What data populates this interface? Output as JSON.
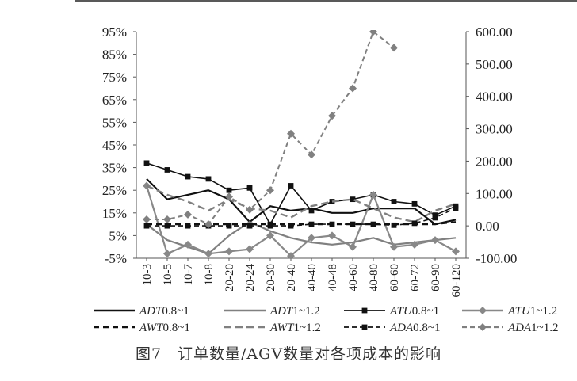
{
  "caption": "图7　订单数量/AGV数量对各项成本的影响",
  "chart_data": {
    "type": "line",
    "title": "",
    "categories": [
      "10-3",
      "10-5",
      "10-7",
      "10-8",
      "20-20",
      "20-24",
      "20-30",
      "20-40",
      "40-40",
      "40-48",
      "40-60",
      "40-80",
      "60-60",
      "60-72",
      "60-90",
      "60-120"
    ],
    "left_axis": {
      "ylim": [
        -5,
        95
      ],
      "ticks": [
        "-5%",
        "5%",
        "15%",
        "25%",
        "35%",
        "45%",
        "55%",
        "65%",
        "75%",
        "85%",
        "95%"
      ],
      "tick_values": [
        -5,
        5,
        15,
        25,
        35,
        45,
        55,
        65,
        75,
        85,
        95
      ]
    },
    "right_axis": {
      "ylim": [
        -100,
        600
      ],
      "ticks": [
        "-100.00",
        "0.00",
        "100.00",
        "200.00",
        "300.00",
        "400.00",
        "500.00",
        "600.00"
      ],
      "tick_values": [
        -100,
        0,
        100,
        200,
        300,
        400,
        500,
        600
      ]
    },
    "grid": false,
    "legend_position": "bottom",
    "series": [
      {
        "name": "ADT0.8~1",
        "axis": "left",
        "style": "solid-black",
        "values": [
          30,
          21,
          23,
          25,
          21,
          11,
          18,
          16,
          17,
          15,
          15,
          17,
          17,
          17,
          10,
          12
        ]
      },
      {
        "name": "ADT1~1.2",
        "axis": "left",
        "style": "solid-gray",
        "values": [
          10,
          3,
          0,
          -3,
          5,
          11,
          7,
          4,
          2,
          1,
          2,
          4,
          1,
          2,
          3,
          4
        ]
      },
      {
        "name": "ATU0.8~1",
        "axis": "left",
        "style": "solid-black-square",
        "values": [
          37,
          34,
          31,
          30,
          25,
          26,
          10,
          27,
          16,
          20,
          21,
          23,
          20,
          19,
          14,
          18
        ]
      },
      {
        "name": "ATU1~1.2",
        "axis": "left",
        "style": "solid-gray-diamond",
        "values": [
          27,
          -3,
          1,
          -3,
          -2,
          -1,
          5,
          -4,
          4,
          5,
          0,
          23,
          0,
          1,
          3,
          -2
        ]
      },
      {
        "name": "AWT0.8~1",
        "axis": "left",
        "style": "dashed-black",
        "values": [
          10,
          10,
          10,
          10,
          10,
          10,
          10,
          10,
          10,
          10,
          10,
          10,
          10,
          10,
          10,
          11
        ]
      },
      {
        "name": "AWT1~1.2",
        "axis": "left",
        "style": "dashed-gray",
        "values": [
          27,
          23,
          20,
          16,
          21,
          17,
          16,
          13,
          18,
          20,
          21,
          17,
          13,
          11,
          16,
          19
        ]
      },
      {
        "name": "ADA0.8~1",
        "axis": "right",
        "style": "dashed-black-square",
        "values": [
          0,
          0,
          0,
          0,
          0,
          0,
          0,
          0,
          5,
          5,
          5,
          5,
          2,
          8,
          25,
          55
        ]
      },
      {
        "name": "ADA1~1.2",
        "axis": "right",
        "style": "dashed-gray-diamond",
        "values": [
          20,
          20,
          35,
          5,
          90,
          50,
          110,
          285,
          220,
          340,
          425,
          600,
          550,
          null,
          null,
          null
        ]
      }
    ]
  },
  "legend": [
    {
      "prefix": "ADT",
      "suffix": "0.8~1"
    },
    {
      "prefix": "ADT",
      "suffix": "1~1.2"
    },
    {
      "prefix": "ATU",
      "suffix": "0.8~1"
    },
    {
      "prefix": "ATU",
      "suffix": "1~1.2"
    },
    {
      "prefix": "AWT",
      "suffix": "0.8~1"
    },
    {
      "prefix": "AWT",
      "suffix": "1~1.2"
    },
    {
      "prefix": "ADA",
      "suffix": "0.8~1"
    },
    {
      "prefix": "ADA",
      "suffix": "1~1.2"
    }
  ]
}
